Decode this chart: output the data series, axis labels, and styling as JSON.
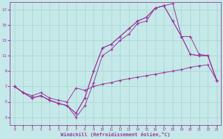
{
  "background_color": "#c5e8e8",
  "line_color": "#993399",
  "xlabel": "Windchill (Refroidissement éolien,°C)",
  "xlim": [
    -0.5,
    23.5
  ],
  "ylim": [
    2,
    18
  ],
  "yticks": [
    3,
    5,
    7,
    9,
    11,
    13,
    15,
    17
  ],
  "xticks": [
    0,
    1,
    2,
    3,
    4,
    5,
    6,
    7,
    8,
    9,
    10,
    11,
    12,
    13,
    14,
    15,
    16,
    17,
    18,
    19,
    20,
    21,
    22,
    23
  ],
  "grid_color": "#a8d0d0",
  "lines": [
    {
      "x": [
        0,
        1,
        2,
        3,
        4,
        5,
        6,
        7,
        8,
        9,
        10,
        11,
        12,
        13,
        14,
        15,
        16,
        17,
        18,
        19,
        20,
        21,
        22,
        23
      ],
      "y": [
        7.0,
        6.2,
        5.8,
        6.2,
        5.5,
        5.2,
        5.0,
        6.8,
        6.5,
        7.0,
        7.3,
        7.5,
        7.8,
        8.0,
        8.2,
        8.4,
        8.6,
        8.8,
        9.0,
        9.2,
        9.5,
        9.7,
        9.8,
        7.8
      ]
    },
    {
      "x": [
        0,
        1,
        2,
        3,
        4,
        5,
        6,
        7,
        8,
        9,
        10,
        11,
        12,
        13,
        14,
        15,
        16,
        17,
        18,
        19,
        20,
        21,
        22,
        23
      ],
      "y": [
        7.0,
        6.2,
        5.5,
        5.8,
        5.2,
        4.8,
        4.5,
        3.0,
        4.5,
        7.5,
        11.0,
        11.8,
        13.0,
        13.8,
        15.2,
        15.5,
        17.2,
        17.5,
        17.8,
        13.5,
        11.2,
        11.0,
        11.0,
        7.8
      ]
    },
    {
      "x": [
        0,
        1,
        2,
        3,
        4,
        5,
        6,
        7,
        8,
        9,
        10,
        11,
        12,
        13,
        14,
        15,
        16,
        17,
        18,
        19,
        20,
        21,
        22,
        23
      ],
      "y": [
        7.0,
        6.2,
        5.5,
        5.8,
        5.2,
        4.8,
        4.5,
        3.5,
        5.5,
        9.0,
        12.0,
        12.5,
        13.5,
        14.5,
        15.5,
        16.0,
        17.2,
        17.5,
        15.5,
        13.5,
        13.5,
        11.2,
        11.0,
        7.8
      ]
    },
    {
      "x": [
        0,
        1,
        2,
        3,
        4,
        5,
        6,
        7,
        8,
        9,
        10,
        11,
        12,
        13,
        14,
        15,
        16,
        17,
        18,
        19,
        20,
        21,
        22,
        23
      ],
      "y": [
        7.0,
        6.2,
        5.5,
        5.8,
        5.2,
        4.8,
        4.5,
        3.5,
        5.5,
        9.0,
        12.0,
        12.5,
        13.5,
        14.5,
        15.5,
        16.0,
        17.2,
        17.5,
        15.5,
        13.5,
        11.2,
        11.0,
        11.0,
        7.8
      ]
    }
  ]
}
